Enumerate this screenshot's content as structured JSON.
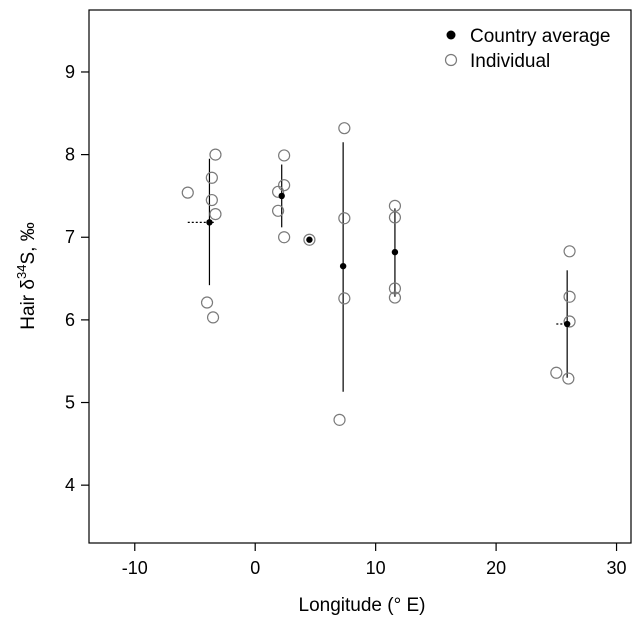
{
  "chart_data": {
    "type": "scatter",
    "xlabel": "Longitude (° E)",
    "ylabel_parts": {
      "prefix": "Hair  δ",
      "superscript": "34",
      "suffix": "S, ‰"
    },
    "xlim": [
      -13.8,
      31.2
    ],
    "ylim": [
      3.3,
      9.75
    ],
    "x_ticks": [
      -10,
      0,
      10,
      20,
      30
    ],
    "y_ticks": [
      4,
      5,
      6,
      7,
      8,
      9
    ],
    "x_tick_labels": [
      "-10",
      "0",
      "10",
      "20",
      "30"
    ],
    "y_tick_labels": [
      "4",
      "5",
      "6",
      "7",
      "8",
      "9"
    ],
    "grid": false,
    "legend_position": "top-right",
    "legend": [
      {
        "label": "Country average",
        "marker": "filled-circle"
      },
      {
        "label": "Individual",
        "marker": "open-circle"
      }
    ],
    "series": [
      {
        "name": "Country average",
        "marker": "filled-circle",
        "points": [
          {
            "x": -3.8,
            "y": 7.18,
            "y_low": 6.42,
            "y_high": 7.95,
            "x_low": -5.6,
            "x_high": -3.3
          },
          {
            "x": 2.2,
            "y": 7.5,
            "y_low": 7.12,
            "y_high": 7.88
          },
          {
            "x": 4.5,
            "y": 6.97
          },
          {
            "x": 7.3,
            "y": 6.65,
            "y_low": 5.13,
            "y_high": 8.15
          },
          {
            "x": 11.6,
            "y": 6.82,
            "y_low": 6.28,
            "y_high": 7.35
          },
          {
            "x": 25.9,
            "y": 5.95,
            "y_low": 5.3,
            "y_high": 6.6,
            "x_low": 25.0,
            "x_high": 26.0
          }
        ]
      },
      {
        "name": "Individual",
        "marker": "open-circle",
        "points": [
          {
            "x": -5.6,
            "y": 7.54
          },
          {
            "x": -3.3,
            "y": 8.0
          },
          {
            "x": -3.6,
            "y": 7.72
          },
          {
            "x": -3.6,
            "y": 7.45
          },
          {
            "x": -3.3,
            "y": 7.28
          },
          {
            "x": -4.0,
            "y": 6.21
          },
          {
            "x": -3.5,
            "y": 6.03
          },
          {
            "x": 2.4,
            "y": 7.99
          },
          {
            "x": 2.4,
            "y": 7.63
          },
          {
            "x": 1.9,
            "y": 7.55
          },
          {
            "x": 1.9,
            "y": 7.32
          },
          {
            "x": 2.4,
            "y": 7.0
          },
          {
            "x": 4.5,
            "y": 6.97
          },
          {
            "x": 7.4,
            "y": 8.32
          },
          {
            "x": 7.4,
            "y": 7.23
          },
          {
            "x": 7.4,
            "y": 6.26
          },
          {
            "x": 7.0,
            "y": 4.79
          },
          {
            "x": 11.6,
            "y": 7.38
          },
          {
            "x": 11.6,
            "y": 7.24
          },
          {
            "x": 11.6,
            "y": 6.38
          },
          {
            "x": 11.6,
            "y": 6.27
          },
          {
            "x": 26.1,
            "y": 6.83
          },
          {
            "x": 26.1,
            "y": 6.28
          },
          {
            "x": 26.1,
            "y": 5.98
          },
          {
            "x": 25.0,
            "y": 5.36
          },
          {
            "x": 26.0,
            "y": 5.29
          }
        ]
      }
    ]
  }
}
